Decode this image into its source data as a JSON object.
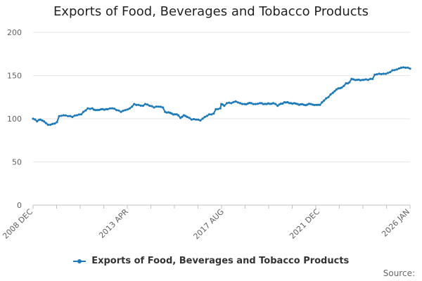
{
  "chart_data": {
    "type": "line",
    "title": "Exports of Food, Beverages and Tobacco Products",
    "xlabel": "",
    "ylabel": "",
    "ylim": [
      0,
      200
    ],
    "yticks": [
      "0",
      "50",
      "100",
      "150",
      "200"
    ],
    "xlim": [
      2008.917,
      2026.0
    ],
    "xticks": [
      {
        "label": "2008 DEC",
        "value": 2008.917
      },
      {
        "label": "2013 APR",
        "value": 2013.25
      },
      {
        "label": "2017 AUG",
        "value": 2017.583
      },
      {
        "label": "2021 DEC",
        "value": 2021.917
      },
      {
        "label": "2026 JAN",
        "value": 2026.0
      }
    ],
    "grid": true,
    "legend_position": "bottom",
    "series": [
      {
        "name": "Exports of Food, Beverages and Tobacco Products",
        "color": "#1f7ab8",
        "points": [
          [
            2008.917,
            100
          ],
          [
            2009.1,
            97
          ],
          [
            2009.25,
            99
          ],
          [
            2009.5,
            95
          ],
          [
            2009.6,
            93
          ],
          [
            2009.8,
            94
          ],
          [
            2010.0,
            96
          ],
          [
            2010.1,
            103
          ],
          [
            2010.3,
            104
          ],
          [
            2010.5,
            103
          ],
          [
            2010.7,
            102
          ],
          [
            2010.9,
            104
          ],
          [
            2011.1,
            105
          ],
          [
            2011.2,
            108
          ],
          [
            2011.4,
            112
          ],
          [
            2011.6,
            112
          ],
          [
            2011.75,
            110
          ],
          [
            2012.0,
            111
          ],
          [
            2012.3,
            111
          ],
          [
            2012.5,
            112
          ],
          [
            2012.7,
            110
          ],
          [
            2012.9,
            108
          ],
          [
            2013.1,
            110
          ],
          [
            2013.3,
            112
          ],
          [
            2013.5,
            117
          ],
          [
            2013.7,
            116
          ],
          [
            2013.9,
            115
          ],
          [
            2014.0,
            117
          ],
          [
            2014.2,
            115
          ],
          [
            2014.4,
            113
          ],
          [
            2014.6,
            114
          ],
          [
            2014.8,
            113
          ],
          [
            2014.9,
            108
          ],
          [
            2015.2,
            106
          ],
          [
            2015.5,
            104
          ],
          [
            2015.6,
            101
          ],
          [
            2015.75,
            104
          ],
          [
            2015.9,
            102
          ],
          [
            2016.1,
            99
          ],
          [
            2016.3,
            99
          ],
          [
            2016.5,
            98
          ],
          [
            2016.7,
            102
          ],
          [
            2016.9,
            105
          ],
          [
            2017.1,
            106
          ],
          [
            2017.2,
            111
          ],
          [
            2017.4,
            112
          ],
          [
            2017.45,
            117
          ],
          [
            2017.583,
            115
          ],
          [
            2017.7,
            118
          ],
          [
            2017.9,
            118
          ],
          [
            2018.1,
            120
          ],
          [
            2018.3,
            118
          ],
          [
            2018.5,
            117
          ],
          [
            2018.8,
            118
          ],
          [
            2019.0,
            117
          ],
          [
            2019.2,
            118
          ],
          [
            2019.5,
            117
          ],
          [
            2019.8,
            118
          ],
          [
            2020.0,
            115
          ],
          [
            2020.3,
            119
          ],
          [
            2020.6,
            118
          ],
          [
            2020.9,
            117
          ],
          [
            2021.2,
            116
          ],
          [
            2021.5,
            117
          ],
          [
            2021.75,
            116
          ],
          [
            2021.917,
            116
          ],
          [
            2022.1,
            121
          ],
          [
            2022.3,
            125
          ],
          [
            2022.5,
            130
          ],
          [
            2022.75,
            135
          ],
          [
            2022.9,
            136
          ],
          [
            2023.1,
            141
          ],
          [
            2023.25,
            142
          ],
          [
            2023.35,
            146
          ],
          [
            2023.6,
            145
          ],
          [
            2023.9,
            145
          ],
          [
            2024.1,
            145
          ],
          [
            2024.3,
            146
          ],
          [
            2024.4,
            151
          ],
          [
            2024.6,
            152
          ],
          [
            2024.8,
            152
          ],
          [
            2025.0,
            153
          ],
          [
            2025.2,
            156
          ],
          [
            2025.4,
            157
          ],
          [
            2025.6,
            159
          ],
          [
            2025.8,
            159
          ],
          [
            2026.0,
            158
          ]
        ]
      }
    ],
    "source_label": "Source:"
  }
}
